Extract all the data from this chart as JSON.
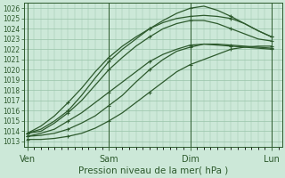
{
  "title": "Pression niveau de la mer( hPa )",
  "bg_color": "#cce8d8",
  "grid_color": "#99c4aa",
  "line_color": "#2d5a2d",
  "ylim_min": 1012.5,
  "ylim_max": 1026.5,
  "yticks": [
    1013,
    1014,
    1015,
    1016,
    1017,
    1018,
    1019,
    1020,
    1021,
    1022,
    1023,
    1024,
    1025,
    1026
  ],
  "xtick_labels": [
    "Ven",
    "Sam",
    "Dim",
    "Lun"
  ],
  "xtick_positions": [
    0,
    48,
    96,
    144
  ],
  "xlim": [
    -2,
    150
  ],
  "lines": [
    {
      "x": [
        0,
        8,
        16,
        24,
        32,
        40,
        48,
        56,
        64,
        72,
        80,
        88,
        96,
        104,
        112,
        120,
        128,
        136,
        144
      ],
      "y": [
        1013.8,
        1014.5,
        1015.5,
        1016.8,
        1018.2,
        1019.8,
        1021.2,
        1022.3,
        1023.2,
        1024.0,
        1024.6,
        1025.0,
        1025.2,
        1025.3,
        1025.2,
        1025.0,
        1024.5,
        1023.8,
        1023.2
      ]
    },
    {
      "x": [
        0,
        8,
        16,
        24,
        32,
        40,
        48,
        56,
        64,
        72,
        80,
        88,
        96,
        104,
        112,
        120,
        128,
        136,
        144
      ],
      "y": [
        1013.8,
        1014.2,
        1015.0,
        1016.0,
        1017.5,
        1019.2,
        1020.8,
        1022.0,
        1023.0,
        1024.0,
        1024.8,
        1025.5,
        1026.0,
        1026.2,
        1025.8,
        1025.2,
        1024.5,
        1023.8,
        1023.2
      ]
    },
    {
      "x": [
        0,
        8,
        16,
        24,
        32,
        40,
        48,
        56,
        64,
        72,
        80,
        88,
        96,
        104,
        112,
        120,
        128,
        136,
        144
      ],
      "y": [
        1013.8,
        1014.0,
        1014.8,
        1015.8,
        1017.0,
        1018.5,
        1020.0,
        1021.2,
        1022.3,
        1023.2,
        1024.0,
        1024.5,
        1024.8,
        1024.8,
        1024.5,
        1024.0,
        1023.5,
        1023.0,
        1022.8
      ]
    },
    {
      "x": [
        0,
        8,
        16,
        24,
        32,
        40,
        48,
        56,
        64,
        72,
        80,
        88,
        96,
        104,
        112,
        120,
        128,
        136,
        144
      ],
      "y": [
        1013.5,
        1013.8,
        1014.2,
        1015.0,
        1015.8,
        1016.8,
        1017.8,
        1018.8,
        1019.8,
        1020.8,
        1021.5,
        1022.0,
        1022.4,
        1022.5,
        1022.4,
        1022.3,
        1022.2,
        1022.1,
        1022.0
      ]
    },
    {
      "x": [
        0,
        8,
        16,
        24,
        32,
        40,
        48,
        56,
        64,
        72,
        80,
        88,
        96,
        104,
        112,
        120,
        128,
        136,
        144
      ],
      "y": [
        1013.5,
        1013.6,
        1013.8,
        1014.2,
        1014.8,
        1015.5,
        1016.5,
        1017.5,
        1018.8,
        1020.0,
        1021.0,
        1021.8,
        1022.2,
        1022.5,
        1022.5,
        1022.4,
        1022.3,
        1022.2,
        1022.1
      ]
    },
    {
      "x": [
        0,
        8,
        16,
        24,
        32,
        40,
        48,
        56,
        64,
        72,
        80,
        88,
        96,
        104,
        112,
        120,
        128,
        136,
        144
      ],
      "y": [
        1013.2,
        1013.2,
        1013.3,
        1013.5,
        1013.8,
        1014.3,
        1015.0,
        1015.8,
        1016.8,
        1017.8,
        1018.8,
        1019.8,
        1020.5,
        1021.0,
        1021.5,
        1022.0,
        1022.2,
        1022.3,
        1022.3
      ]
    }
  ],
  "marker": "+",
  "marker_every": 3,
  "linewidth": 0.9,
  "markersize": 3.5,
  "ylabel_fontsize": 5.5,
  "xlabel_fontsize": 7.5,
  "ytick_fontsize": 5.5,
  "xtick_fontsize": 7
}
